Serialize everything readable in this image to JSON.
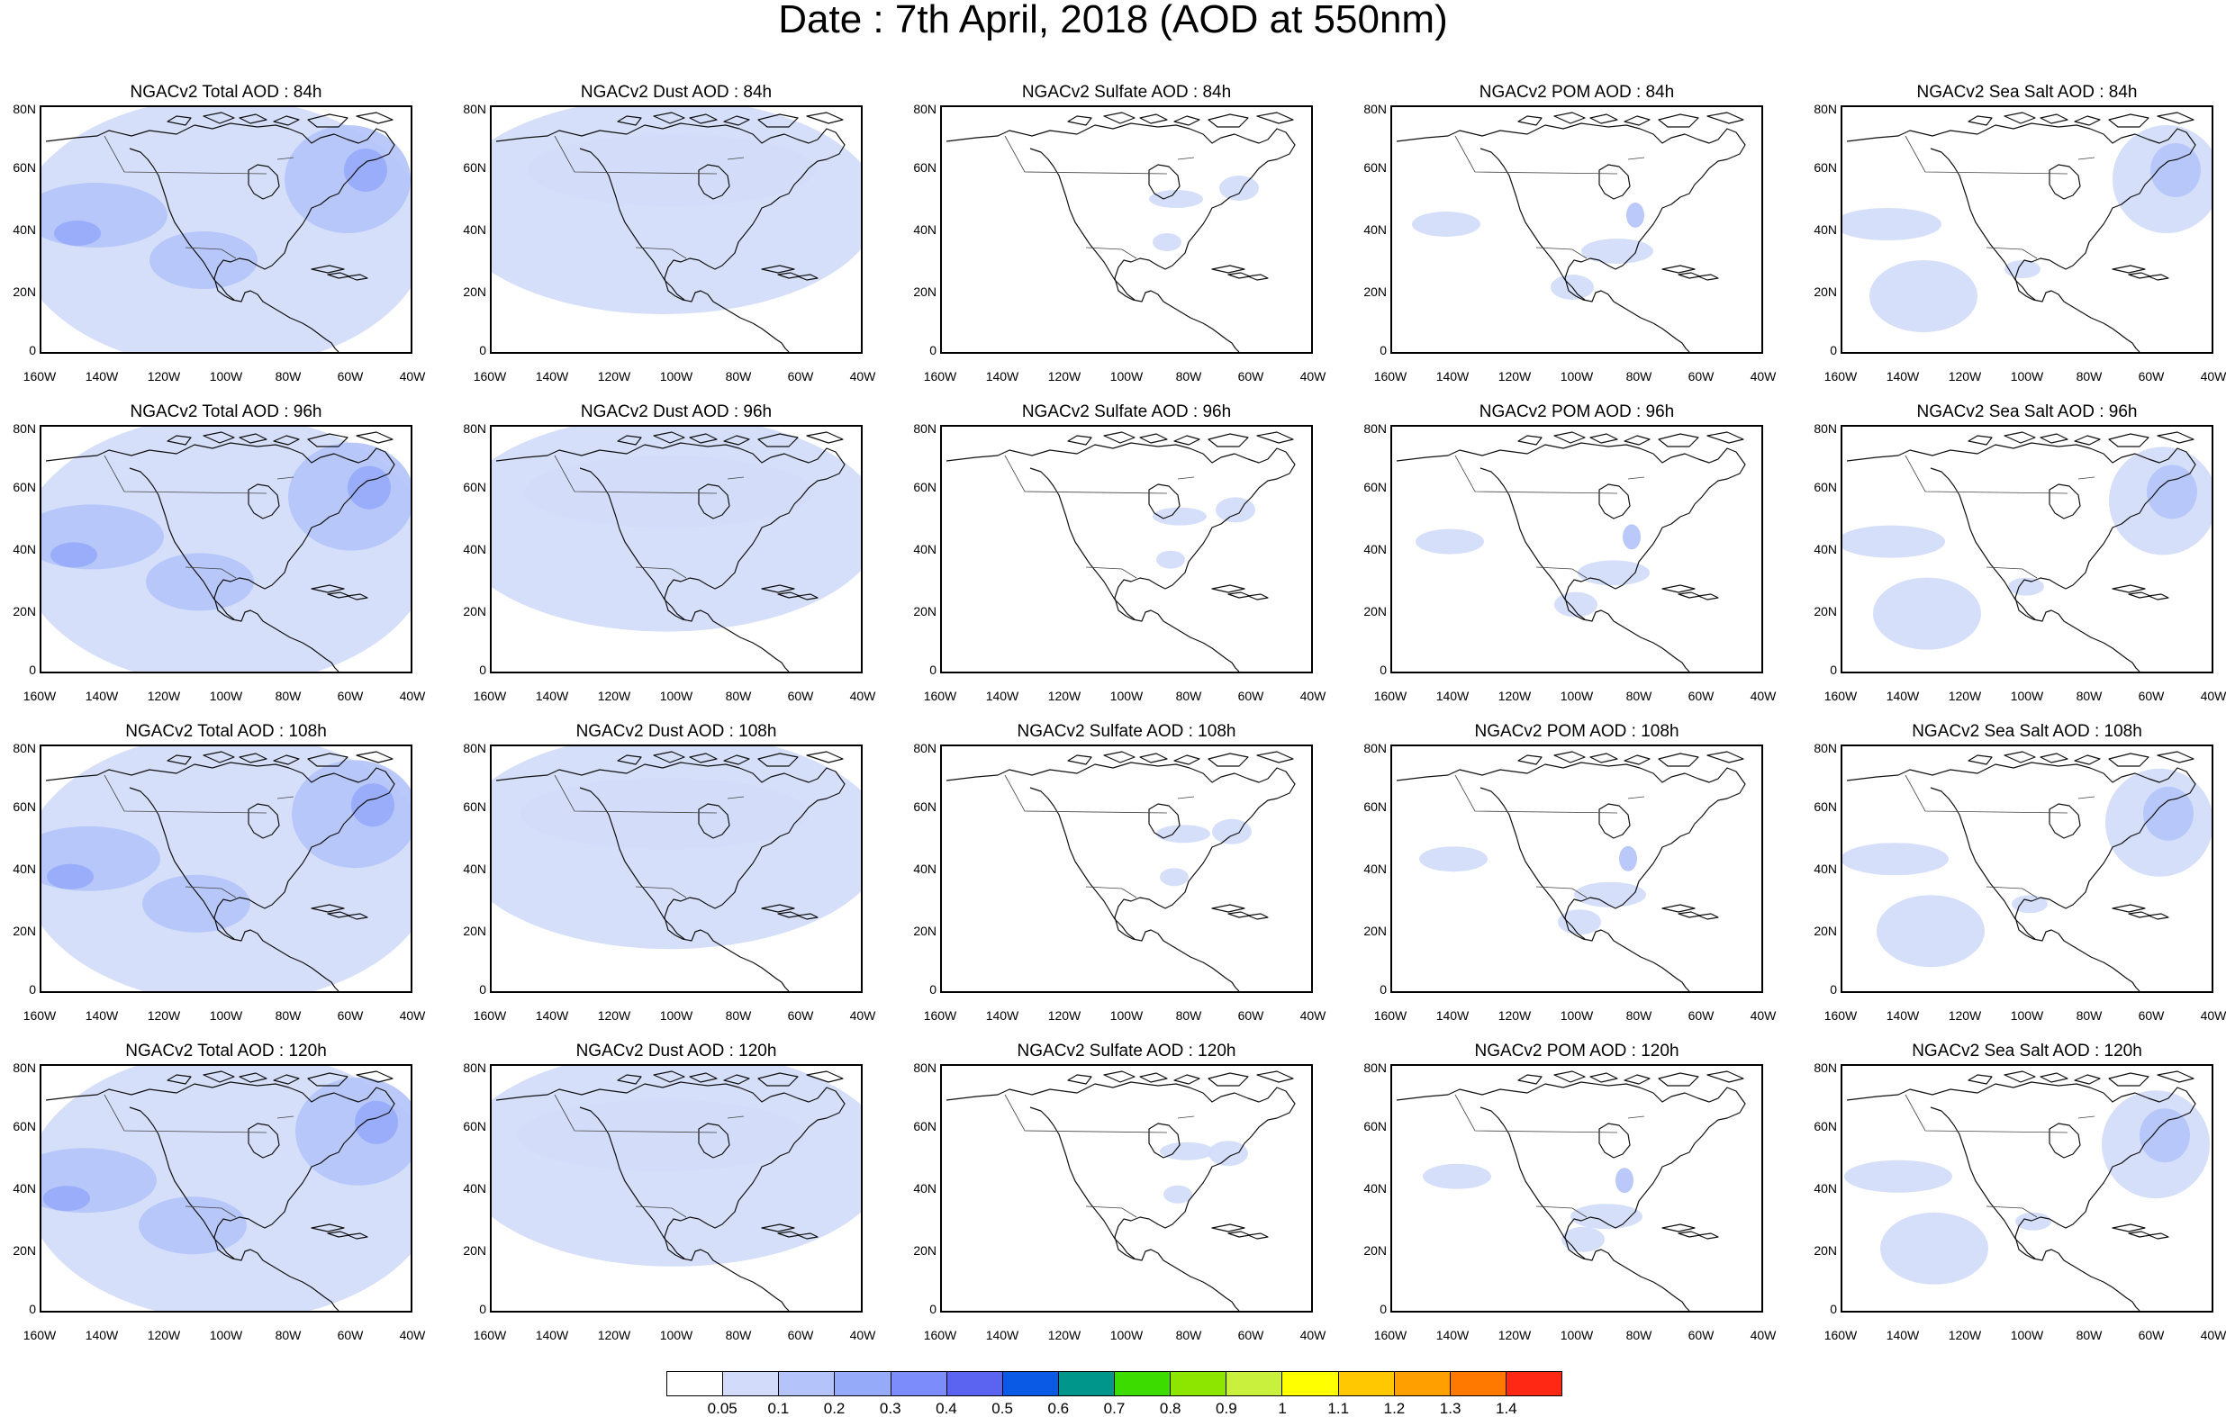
{
  "title": "Date : 7th April, 2018 (AOD at 550nm)",
  "y_ticks": [
    "80N",
    "60N",
    "40N",
    "20N",
    "0"
  ],
  "x_ticks": [
    "160W",
    "140W",
    "120W",
    "100W",
    "80W",
    "60W",
    "40W"
  ],
  "panels": [
    {
      "title": "NGACv2 Total AOD : 84h",
      "species": "total"
    },
    {
      "title": "NGACv2 Dust AOD : 84h",
      "species": "dust"
    },
    {
      "title": "NGACv2 Sulfate AOD : 84h",
      "species": "sulfate"
    },
    {
      "title": "NGACv2 POM AOD : 84h",
      "species": "pom"
    },
    {
      "title": "NGACv2 Sea Salt AOD : 84h",
      "species": "seasalt"
    },
    {
      "title": "NGACv2 Total AOD : 96h",
      "species": "total"
    },
    {
      "title": "NGACv2 Dust AOD : 96h",
      "species": "dust"
    },
    {
      "title": "NGACv2 Sulfate AOD : 96h",
      "species": "sulfate"
    },
    {
      "title": "NGACv2 POM AOD : 96h",
      "species": "pom"
    },
    {
      "title": "NGACv2 Sea Salt AOD : 96h",
      "species": "seasalt"
    },
    {
      "title": "NGACv2 Total AOD : 108h",
      "species": "total"
    },
    {
      "title": "NGACv2 Dust AOD : 108h",
      "species": "dust"
    },
    {
      "title": "NGACv2 Sulfate AOD : 108h",
      "species": "sulfate"
    },
    {
      "title": "NGACv2 POM AOD : 108h",
      "species": "pom"
    },
    {
      "title": "NGACv2 Sea Salt AOD : 108h",
      "species": "seasalt"
    },
    {
      "title": "NGACv2 Total AOD : 120h",
      "species": "total"
    },
    {
      "title": "NGACv2 Dust AOD : 120h",
      "species": "dust"
    },
    {
      "title": "NGACv2 Sulfate AOD : 120h",
      "species": "sulfate"
    },
    {
      "title": "NGACv2 POM AOD : 120h",
      "species": "pom"
    },
    {
      "title": "NGACv2 Sea Salt  AOD : 120h",
      "species": "seasalt"
    }
  ],
  "colorbar": {
    "colors": [
      "#ffffff",
      "#d2dcfa",
      "#b4c4fa",
      "#96aafa",
      "#7c8cfa",
      "#5a64f0",
      "#0a5ae6",
      "#00968c",
      "#3cdc00",
      "#8ce600",
      "#c8f03c",
      "#ffff00",
      "#ffc800",
      "#ffa000",
      "#ff7800",
      "#ff2814"
    ],
    "labels": [
      "0.05",
      "0.1",
      "0.2",
      "0.3",
      "0.4",
      "0.5",
      "0.6",
      "0.7",
      "0.8",
      "0.9",
      "1",
      "1.1",
      "1.2",
      "1.3",
      "1.4"
    ]
  }
}
